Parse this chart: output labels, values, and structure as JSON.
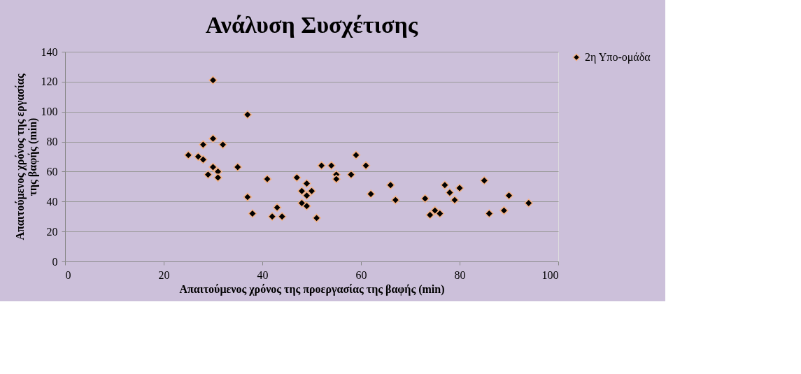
{
  "chart_data": {
    "type": "scatter",
    "title": "Ανάλυση Συσχέτισης",
    "xlabel": "Απαιτούμενος χρόνος της προεργασίας της βαφής (min)",
    "ylabel": "Απαιτούμενος χρόνος της εργασίας\nτης βαφής (min)",
    "xlim": [
      0,
      100
    ],
    "xticks": [
      0,
      20,
      40,
      60,
      80,
      100
    ],
    "ylim": [
      0,
      140
    ],
    "yticks": [
      0,
      20,
      40,
      60,
      80,
      100,
      120,
      140
    ],
    "grid": "y",
    "legend": "right",
    "marker": "diamond",
    "series": [
      {
        "name": "2η Υπο-ομάδα",
        "color": "#000000",
        "x": [
          30,
          37,
          30,
          28,
          32,
          25,
          27,
          28,
          30,
          31,
          29,
          31,
          35,
          41,
          37,
          38,
          43,
          42,
          44,
          47,
          49,
          48,
          49,
          48,
          49,
          50,
          51,
          52,
          54,
          55,
          55,
          58,
          59,
          61,
          62,
          66,
          67,
          73,
          74,
          75,
          76,
          77,
          78,
          80,
          79,
          85,
          86,
          89,
          90,
          94
        ],
        "values": [
          121,
          98,
          82,
          78,
          78,
          71,
          70,
          68,
          63,
          60,
          58,
          56,
          63,
          55,
          43,
          32,
          36,
          30,
          30,
          56,
          52,
          47,
          44,
          39,
          37,
          47,
          29,
          64,
          64,
          58,
          55,
          58,
          71,
          64,
          45,
          51,
          41,
          42,
          31,
          34,
          32,
          51,
          46,
          49,
          41,
          54,
          32,
          34,
          44,
          39
        ]
      }
    ]
  }
}
